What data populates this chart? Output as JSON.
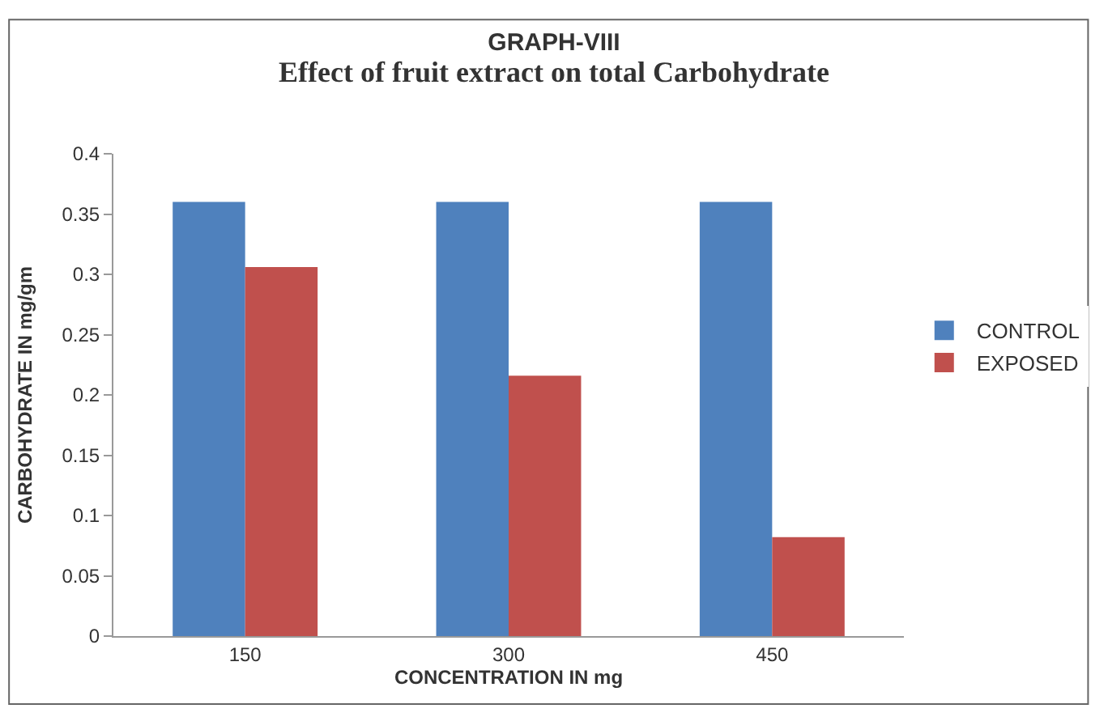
{
  "chart_data": {
    "type": "bar",
    "title": "GRAPH-VIII",
    "subtitle": "Effect of fruit extract on total Carbohydrate",
    "xlabel": "CONCENTRATION IN mg",
    "ylabel": "CARBOHYDRATE IN mg/gm",
    "categories": [
      "150",
      "300",
      "450"
    ],
    "series": [
      {
        "name": "CONTROL",
        "color": "#4f81bd",
        "values": [
          0.36,
          0.36,
          0.36
        ]
      },
      {
        "name": "EXPOSED",
        "color": "#c0504d",
        "values": [
          0.306,
          0.216,
          0.082
        ]
      }
    ],
    "ylim": [
      0,
      0.4
    ],
    "yticks": [
      0,
      {
        "value": 0.05,
        "label": "0.05"
      },
      {
        "value": 0.1,
        "label": "0.1"
      },
      {
        "value": 0.15,
        "label": "0.15"
      },
      {
        "value": 0.2,
        "label": "0.2"
      },
      {
        "value": 0.25,
        "label": "0.25"
      },
      {
        "value": 0.3,
        "label": "0.3"
      },
      {
        "value": 0.35,
        "label": "0.35"
      },
      {
        "value": 0.4,
        "label": "0.4"
      }
    ],
    "legend": "right"
  }
}
